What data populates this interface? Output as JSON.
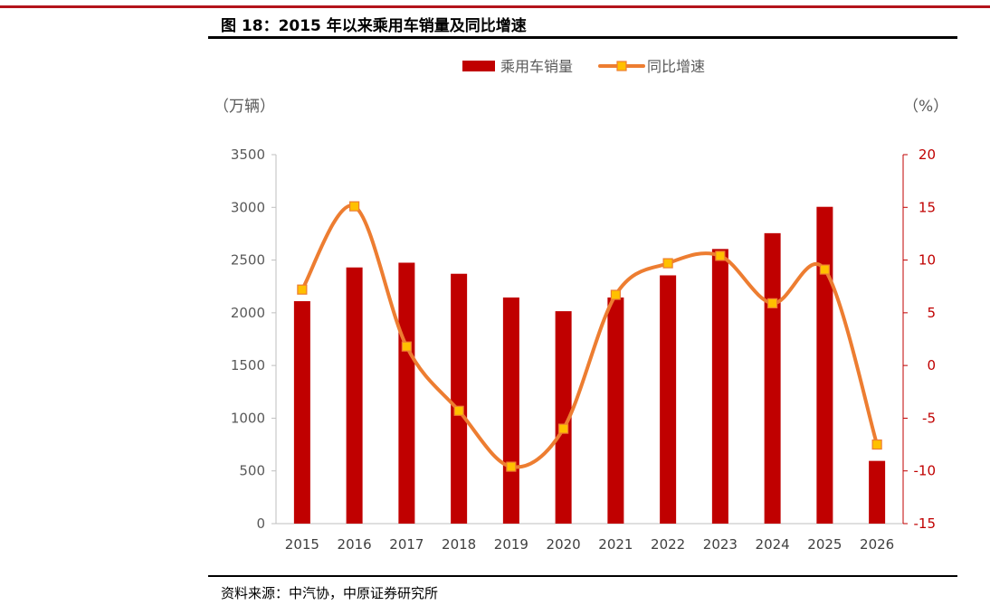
{
  "header": {
    "figure_title": "图 18：2015 年以来乘用车销量及同比增速"
  },
  "footer": {
    "source": "资料来源：中汽协，中原证券研究所"
  },
  "chart_data": {
    "type": "bar",
    "categories": [
      "2015",
      "2016",
      "2017",
      "2018",
      "2019",
      "2020",
      "2021",
      "2022",
      "2023",
      "2024",
      "2025",
      "2026"
    ],
    "series": [
      {
        "name": "乘用车销量",
        "type": "bar",
        "axis": "left",
        "color": "#c00000",
        "values": [
          2110,
          2430,
          2475,
          2370,
          2145,
          2015,
          2145,
          2355,
          2605,
          2755,
          3005,
          595
        ]
      },
      {
        "name": "同比增速",
        "type": "line",
        "axis": "right",
        "color": "#ed7d31",
        "marker_color": "#ffc000",
        "values": [
          7.2,
          15.1,
          1.8,
          -4.3,
          -9.6,
          -6.0,
          6.7,
          9.7,
          10.4,
          5.9,
          9.1,
          -7.5
        ]
      }
    ],
    "y_left": {
      "label": "（万辆）",
      "min": 0,
      "max": 3500,
      "ticks": [
        0,
        500,
        1000,
        1500,
        2000,
        2500,
        3000,
        3500
      ]
    },
    "y_right": {
      "label": "（%）",
      "min": -15,
      "max": 20,
      "ticks": [
        -15,
        -10,
        -5,
        0,
        5,
        10,
        15,
        20
      ],
      "color": "#c00000"
    },
    "legend": {
      "position": "top-center"
    },
    "grid": false
  }
}
